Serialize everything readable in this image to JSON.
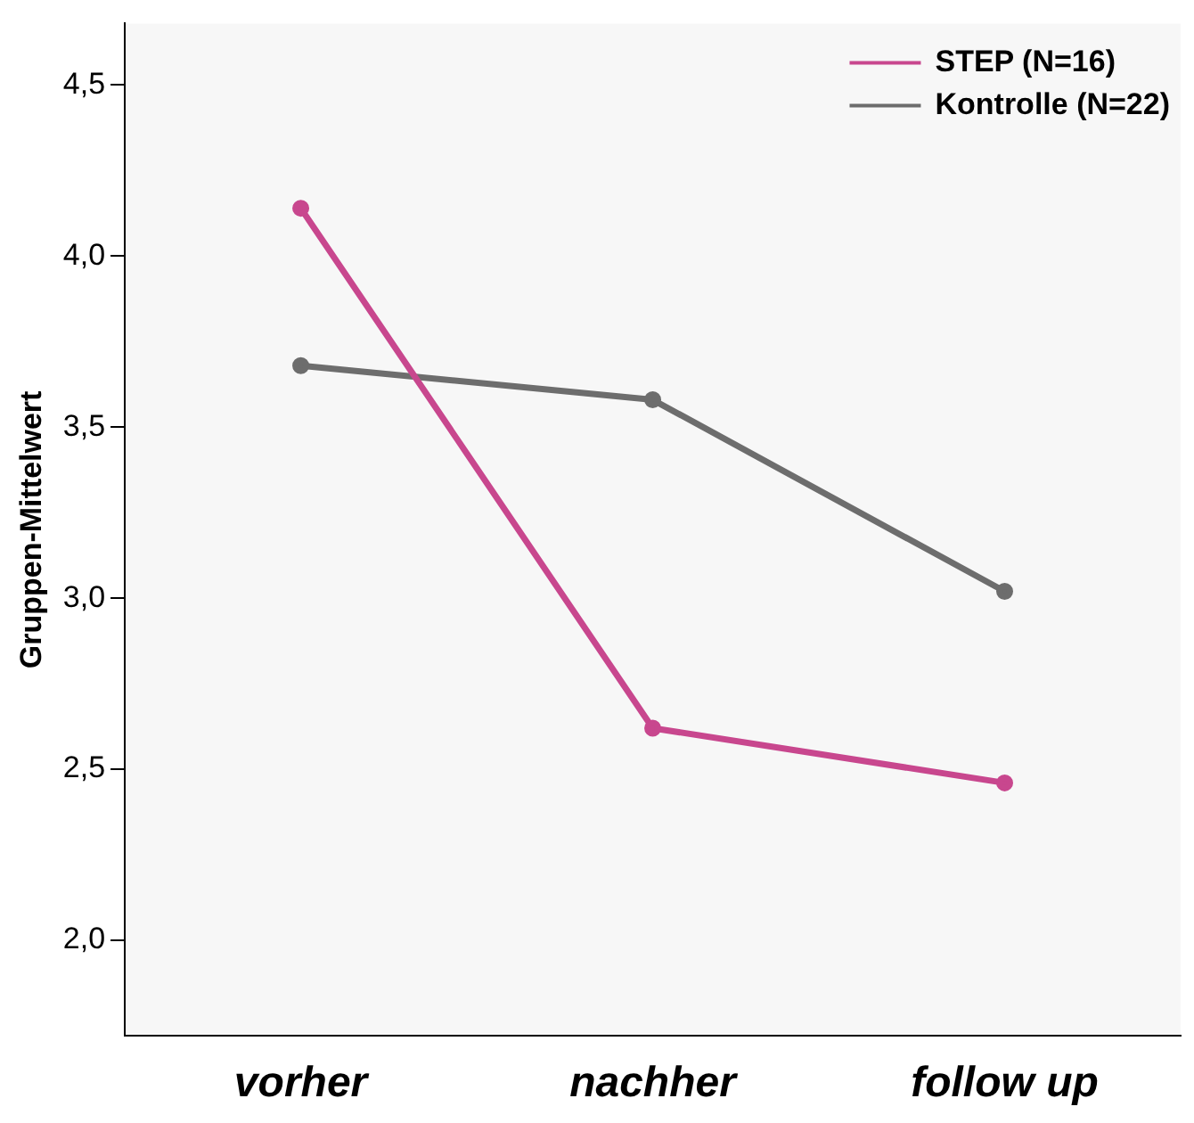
{
  "chart_data": {
    "type": "line",
    "ylabel": "Gruppen-Mittelwert",
    "categories": [
      "vorher",
      "nachher",
      "follow up"
    ],
    "series": [
      {
        "name": "STEP (N=16)",
        "color": "#c8478e",
        "values": [
          4.14,
          2.62,
          2.46
        ]
      },
      {
        "name": "Kontrolle (N=22)",
        "color": "#6d6d6d",
        "values": [
          3.68,
          3.58,
          3.02
        ]
      }
    ],
    "ylim": [
      1.72,
      4.68
    ],
    "yticks": [
      {
        "value": 2.0,
        "label": "2,0"
      },
      {
        "value": 2.5,
        "label": "2,5"
      },
      {
        "value": 3.0,
        "label": "3,0"
      },
      {
        "value": 3.5,
        "label": "3,5"
      },
      {
        "value": 4.0,
        "label": "4,0"
      },
      {
        "value": 4.5,
        "label": "4,5"
      }
    ],
    "grid": false,
    "legend": "top right",
    "marker": "circle",
    "line_style": "solid"
  }
}
